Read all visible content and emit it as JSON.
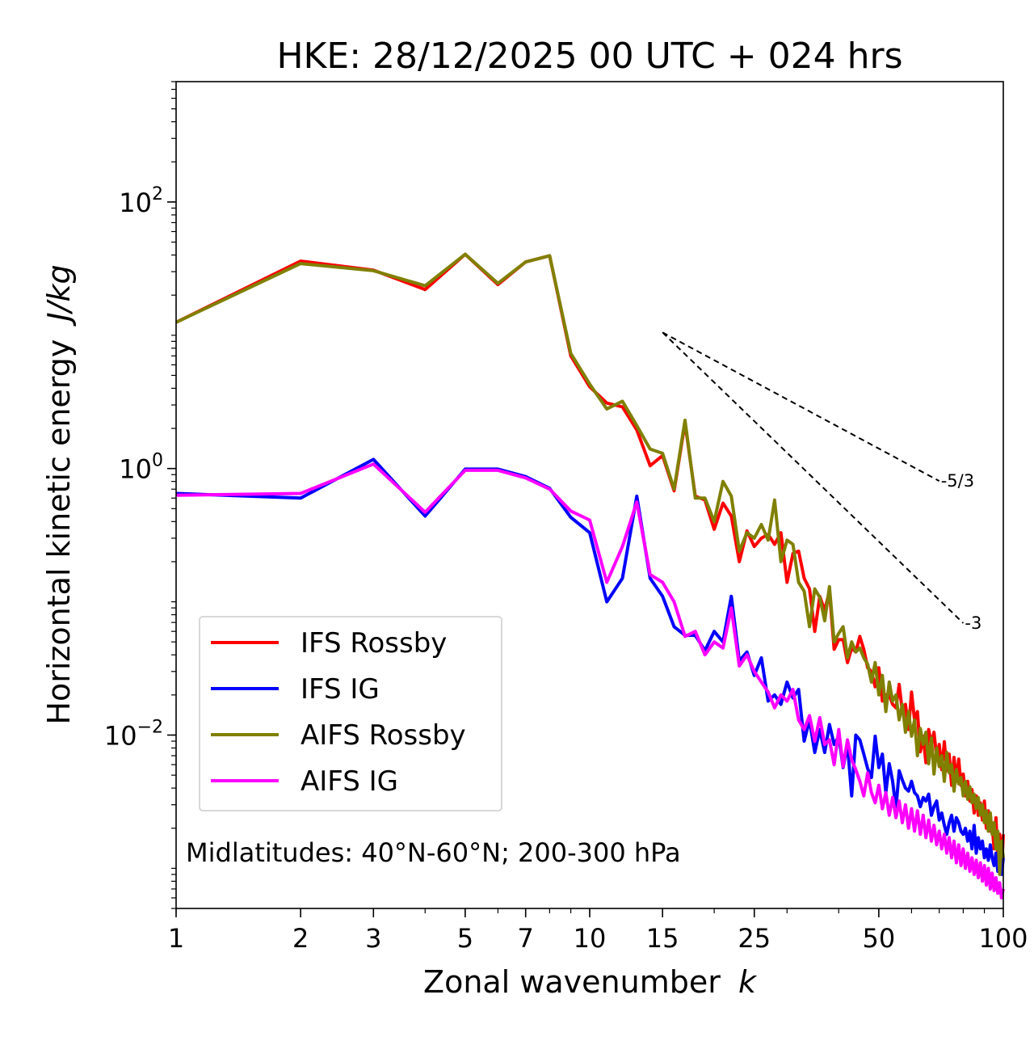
{
  "chart_data": {
    "type": "line",
    "title": "HKE: 28/12/2025 00 UTC + 024 hrs",
    "xlabel": "Zonal wavenumber",
    "xlabel_var": "k",
    "ylabel": "Horizontal kinetic energy",
    "ylabel_units": "J/kg",
    "xscale": "log",
    "yscale": "log",
    "xlim": [
      1,
      100
    ],
    "ylim": [
      0.0005,
      800
    ],
    "xticks": [
      1,
      2,
      3,
      5,
      7,
      10,
      15,
      25,
      50,
      100
    ],
    "xtick_labels": [
      "1",
      "2",
      "3",
      "5",
      "7",
      "10",
      "15",
      "25",
      "50",
      "100"
    ],
    "yticks": [
      {
        "value": 100,
        "base": "10",
        "exp": "2"
      },
      {
        "value": 1,
        "base": "10",
        "exp": "0"
      },
      {
        "value": 0.01,
        "base": "10",
        "exp": "−2"
      }
    ],
    "annotation": "Midlatitudes: 40°N-60°N; 200-300 hPa",
    "legend_position": "lower-left",
    "reference_slopes": [
      {
        "label": "-5/3",
        "slope": -1.6667,
        "x_start": 15,
        "y_start": 10.5,
        "x_end": 70
      },
      {
        "label": "-3",
        "slope": -3,
        "x_start": 15,
        "y_start": 10.5,
        "x_end": 80
      }
    ],
    "series": [
      {
        "name": "IFS Rossby",
        "color": "#ff0000",
        "values": [
          12.5,
          36,
          30.8,
          22,
          40.5,
          24,
          35.5,
          39.5,
          7,
          4.1,
          3.1,
          2.9,
          1.95,
          1.05,
          1.25,
          0.68,
          2.2,
          0.62,
          0.58,
          0.35,
          0.55,
          0.44,
          0.2,
          0.34,
          0.26,
          0.3,
          0.32,
          0.27,
          0.33,
          0.14,
          0.23,
          0.24,
          0.15,
          0.125,
          0.06,
          0.11,
          0.086,
          0.12,
          0.044,
          0.052,
          0.052,
          0.035,
          0.045,
          0.042,
          0.055,
          0.044,
          0.032,
          0.03,
          0.023,
          0.032,
          0.018,
          0.02,
          0.02,
          0.017,
          0.016,
          0.024,
          0.015,
          0.017,
          0.011,
          0.021,
          0.013,
          0.015,
          0.0075,
          0.0098,
          0.0062,
          0.011,
          0.0085,
          0.0105,
          0.0068,
          0.0085,
          0.0055,
          0.0089,
          0.0054,
          0.0072,
          0.0042,
          0.0068,
          0.0045,
          0.0066,
          0.0042,
          0.0051,
          0.0035,
          0.0045,
          0.0032,
          0.0039,
          0.0026,
          0.0035,
          0.0025,
          0.0031,
          0.0023,
          0.0032,
          0.002,
          0.0027,
          0.0019,
          0.0021,
          0.0014,
          0.0024,
          0.0012,
          0.0018,
          0.00095,
          0.0018
        ]
      },
      {
        "name": "IFS IG",
        "color": "#0000ff",
        "values": [
          0.65,
          0.6,
          1.17,
          0.44,
          0.99,
          0.99,
          0.87,
          0.71,
          0.43,
          0.33,
          0.1,
          0.15,
          0.62,
          0.15,
          0.11,
          0.065,
          0.056,
          0.056,
          0.043,
          0.06,
          0.05,
          0.11,
          0.036,
          0.042,
          0.028,
          0.038,
          0.018,
          0.02,
          0.017,
          0.025,
          0.019,
          0.022,
          0.009,
          0.013,
          0.0074,
          0.011,
          0.0074,
          0.012,
          0.0085,
          0.0098,
          0.0057,
          0.0085,
          0.0035,
          0.01,
          0.0092,
          0.0072,
          0.0056,
          0.0048,
          0.0098,
          0.0057,
          0.0072,
          0.0037,
          0.0061,
          0.0045,
          0.0028,
          0.0054,
          0.0046,
          0.004,
          0.0038,
          0.0045,
          0.0037,
          0.0035,
          0.0029,
          0.0034,
          0.0032,
          0.0036,
          0.0025,
          0.0029,
          0.0032,
          0.0023,
          0.0026,
          0.0021,
          0.0018,
          0.0022,
          0.0025,
          0.0019,
          0.0024,
          0.0022,
          0.0019,
          0.0018,
          0.002,
          0.0016,
          0.0019,
          0.0014,
          0.0021,
          0.0013,
          0.0017,
          0.0014,
          0.0016,
          0.0012,
          0.0014,
          0.00115,
          0.0015,
          0.0012,
          0.00105,
          0.0013,
          0.00095,
          0.0011,
          0.0009,
          0.0012
        ]
      },
      {
        "name": "AIFS Rossby",
        "color": "#808000",
        "values": [
          12.5,
          34.5,
          30.5,
          23.5,
          40.5,
          24.5,
          35.5,
          39.5,
          7.3,
          4.3,
          2.8,
          3.2,
          2.1,
          1.4,
          1.3,
          0.7,
          2.3,
          0.6,
          0.6,
          0.4,
          0.8,
          0.62,
          0.24,
          0.33,
          0.3,
          0.38,
          0.29,
          0.58,
          0.2,
          0.29,
          0.27,
          0.14,
          0.12,
          0.065,
          0.125,
          0.108,
          0.072,
          0.13,
          0.05,
          0.058,
          0.065,
          0.038,
          0.05,
          0.042,
          0.045,
          0.038,
          0.034,
          0.025,
          0.035,
          0.02,
          0.028,
          0.015,
          0.025,
          0.018,
          0.02,
          0.013,
          0.017,
          0.0105,
          0.015,
          0.0098,
          0.013,
          0.007,
          0.0112,
          0.0085,
          0.0105,
          0.0061,
          0.0095,
          0.0051,
          0.008,
          0.0058,
          0.007,
          0.0045,
          0.0074,
          0.0052,
          0.006,
          0.0038,
          0.0055,
          0.0043,
          0.0048,
          0.0035,
          0.0045,
          0.0033,
          0.0041,
          0.0031,
          0.0036,
          0.0028,
          0.0034,
          0.0025,
          0.003,
          0.0022,
          0.0027,
          0.0019,
          0.0026,
          0.0018,
          0.0022,
          0.0014,
          0.0019,
          0.0009,
          0.0016,
          0.0012
        ]
      },
      {
        "name": "AIFS IG",
        "color": "#ff00ff",
        "values": [
          0.63,
          0.65,
          1.08,
          0.47,
          0.97,
          0.97,
          0.85,
          0.7,
          0.48,
          0.41,
          0.14,
          0.26,
          0.56,
          0.16,
          0.14,
          0.1,
          0.055,
          0.06,
          0.04,
          0.05,
          0.045,
          0.09,
          0.033,
          0.04,
          0.03,
          0.025,
          0.021,
          0.016,
          0.02,
          0.018,
          0.022,
          0.013,
          0.011,
          0.014,
          0.009,
          0.0135,
          0.0085,
          0.0092,
          0.006,
          0.011,
          0.0058,
          0.0092,
          0.0065,
          0.0055,
          0.0045,
          0.0035,
          0.0052,
          0.0037,
          0.0031,
          0.0042,
          0.0028,
          0.0037,
          0.0025,
          0.0034,
          0.0024,
          0.0032,
          0.0022,
          0.003,
          0.002,
          0.0028,
          0.0019,
          0.0027,
          0.0018,
          0.0025,
          0.0017,
          0.0023,
          0.0016,
          0.0021,
          0.0015,
          0.0019,
          0.0014,
          0.0018,
          0.0013,
          0.0017,
          0.0012,
          0.0016,
          0.0011,
          0.0015,
          0.00105,
          0.0014,
          0.001,
          0.0013,
          0.00095,
          0.0012,
          0.0009,
          0.00115,
          0.00085,
          0.0011,
          0.0008,
          0.00105,
          0.00075,
          0.001,
          0.0007,
          0.00092,
          0.00068,
          0.00085,
          0.00065,
          0.00078,
          0.0006,
          0.0007
        ]
      }
    ]
  }
}
